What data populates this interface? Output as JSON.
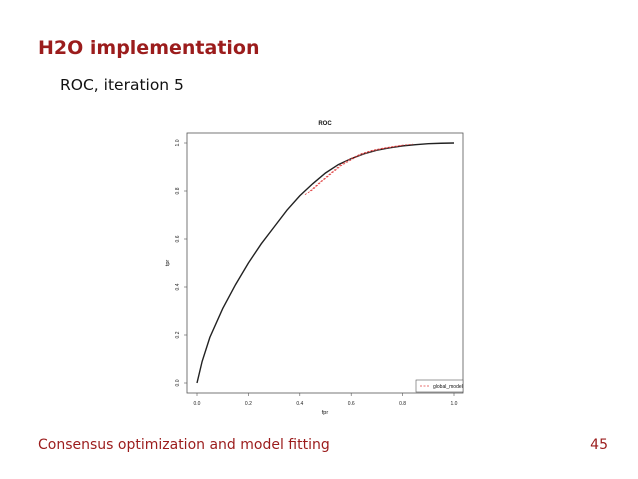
{
  "slide": {
    "title": "H2O implementation",
    "subtitle": "ROC, iteration 5",
    "footer_left": "Consensus optimization and model fitting",
    "page_number": "45"
  },
  "colors": {
    "title": "#9b1c1c",
    "global_model_line": "#222222",
    "local_model_lines": "#e04040"
  },
  "chart_data": {
    "type": "line",
    "title": "ROC",
    "xlabel": "fpr",
    "ylabel": "tpr",
    "xlim": [
      0,
      1
    ],
    "ylim": [
      0,
      1
    ],
    "x_ticks": [
      "0.0",
      "0.2",
      "0.4",
      "0.6",
      "0.8",
      "1.0"
    ],
    "y_ticks": [
      "0.0",
      "0.2",
      "0.4",
      "0.6",
      "0.8",
      "1.0"
    ],
    "grid": false,
    "legend_position": "bottom-right",
    "legend_entries": [
      "global_model"
    ],
    "series": [
      {
        "name": "global_model",
        "style": "solid",
        "x": [
          0.0,
          0.02,
          0.05,
          0.1,
          0.15,
          0.2,
          0.25,
          0.3,
          0.35,
          0.4,
          0.45,
          0.5,
          0.55,
          0.6,
          0.65,
          0.7,
          0.75,
          0.8,
          0.85,
          0.9,
          0.95,
          1.0
        ],
        "y": [
          0.0,
          0.09,
          0.19,
          0.31,
          0.41,
          0.5,
          0.58,
          0.65,
          0.72,
          0.78,
          0.83,
          0.875,
          0.91,
          0.935,
          0.955,
          0.97,
          0.98,
          0.988,
          0.993,
          0.997,
          0.999,
          1.0
        ]
      },
      {
        "style": "dashed",
        "x": [
          0.42,
          0.45,
          0.48,
          0.52,
          0.56,
          0.6,
          0.64,
          0.68,
          0.72,
          0.76,
          0.8
        ],
        "y": [
          0.785,
          0.805,
          0.835,
          0.87,
          0.905,
          0.93,
          0.952,
          0.966,
          0.976,
          0.983,
          0.99
        ]
      },
      {
        "style": "dashed",
        "x": [
          0.44,
          0.48,
          0.52,
          0.56,
          0.6,
          0.64,
          0.68,
          0.72,
          0.76,
          0.8,
          0.84
        ],
        "y": [
          0.8,
          0.838,
          0.874,
          0.91,
          0.936,
          0.956,
          0.969,
          0.978,
          0.985,
          0.991,
          0.995
        ]
      }
    ]
  }
}
